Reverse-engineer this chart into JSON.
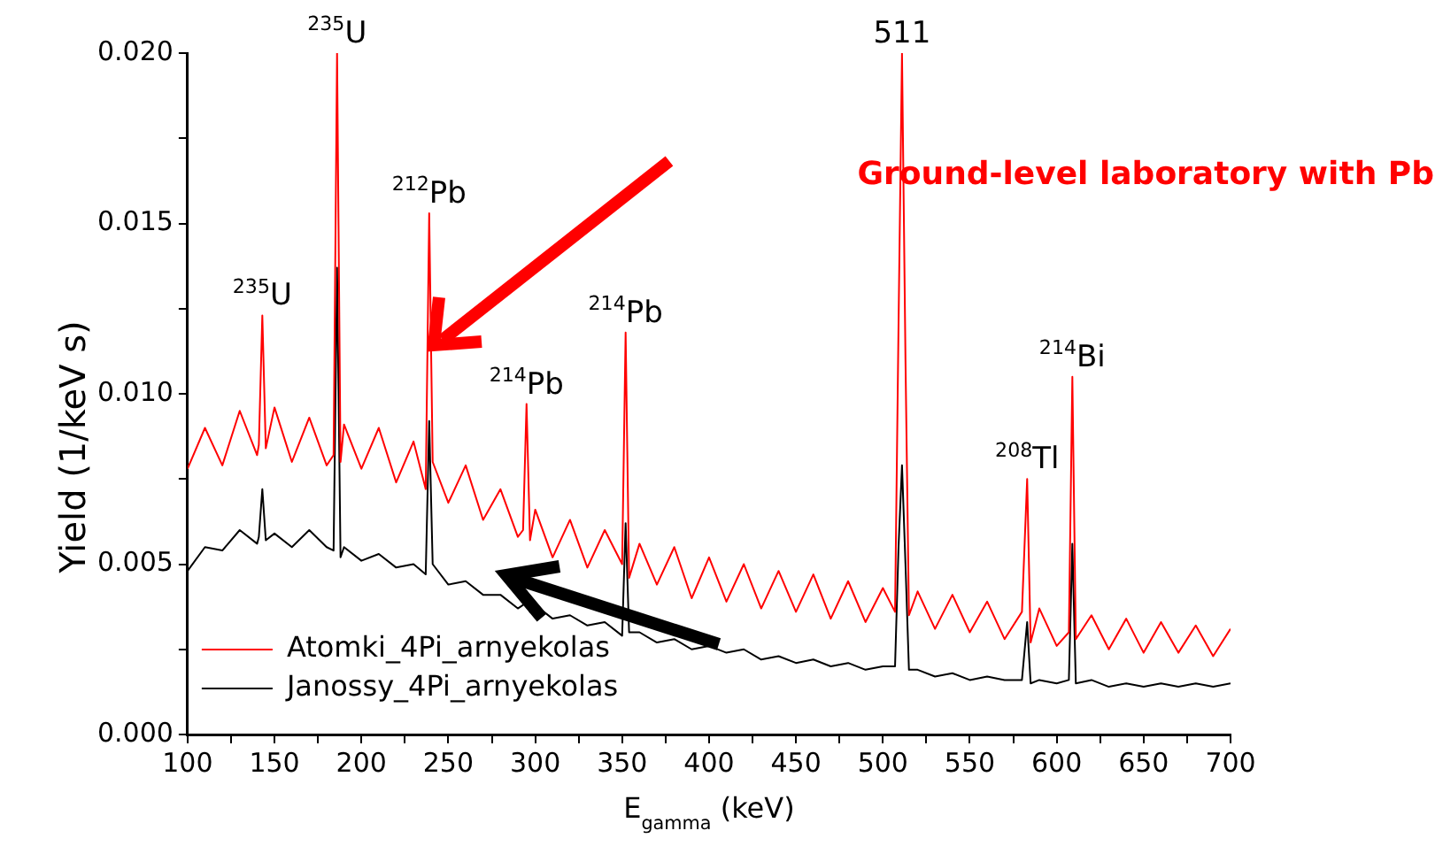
{
  "chart_data": {
    "type": "line",
    "xlabel": "E$_{gamma}$ (keV)",
    "ylabel": "Yield (1/keV s)",
    "x": [
      100,
      110,
      120,
      130,
      140,
      141,
      143,
      145,
      150,
      160,
      170,
      180,
      184,
      186,
      188,
      190,
      200,
      210,
      220,
      230,
      237,
      239,
      241,
      250,
      260,
      270,
      280,
      290,
      293,
      295,
      297,
      300,
      310,
      320,
      330,
      340,
      350,
      352,
      354,
      360,
      370,
      380,
      390,
      400,
      410,
      420,
      430,
      440,
      450,
      460,
      470,
      480,
      490,
      500,
      507,
      509,
      511,
      513,
      515,
      520,
      530,
      540,
      550,
      560,
      570,
      580,
      583,
      585,
      590,
      600,
      607,
      609,
      611,
      620,
      630,
      640,
      650,
      660,
      670,
      680,
      690,
      700
    ],
    "series": [
      {
        "name": "Atomki_4Pi_arnyekolas",
        "color": "#ff0000",
        "values": [
          0.0078,
          0.009,
          0.0079,
          0.0095,
          0.0082,
          0.0085,
          0.0123,
          0.0084,
          0.0096,
          0.008,
          0.0093,
          0.0079,
          0.0082,
          0.02,
          0.008,
          0.0091,
          0.0078,
          0.009,
          0.0074,
          0.0086,
          0.0072,
          0.0153,
          0.008,
          0.0068,
          0.0079,
          0.0063,
          0.0072,
          0.0058,
          0.006,
          0.0097,
          0.0057,
          0.0066,
          0.0052,
          0.0063,
          0.0049,
          0.006,
          0.005,
          0.0118,
          0.0046,
          0.0056,
          0.0044,
          0.0055,
          0.004,
          0.0052,
          0.0039,
          0.005,
          0.0037,
          0.0048,
          0.0036,
          0.0047,
          0.0034,
          0.0045,
          0.0033,
          0.0043,
          0.0036,
          0.012,
          0.02,
          0.011,
          0.0035,
          0.0042,
          0.0031,
          0.0041,
          0.003,
          0.0039,
          0.0028,
          0.0036,
          0.0075,
          0.0027,
          0.0037,
          0.0026,
          0.003,
          0.0105,
          0.0028,
          0.0035,
          0.0025,
          0.0034,
          0.0024,
          0.0033,
          0.0024,
          0.0032,
          0.0023,
          0.0031
        ]
      },
      {
        "name": "Janossy_4Pi_arnyekolas",
        "color": "#000000",
        "values": [
          0.0048,
          0.0055,
          0.0054,
          0.006,
          0.0056,
          0.0058,
          0.0072,
          0.0057,
          0.0059,
          0.0055,
          0.006,
          0.0055,
          0.0054,
          0.0137,
          0.0052,
          0.0055,
          0.0051,
          0.0053,
          0.0049,
          0.005,
          0.0047,
          0.0092,
          0.005,
          0.0044,
          0.0045,
          0.0041,
          0.0041,
          0.0037,
          0.0038,
          0.0042,
          0.0036,
          0.0038,
          0.0034,
          0.0035,
          0.0032,
          0.0033,
          0.0029,
          0.0062,
          0.003,
          0.003,
          0.0027,
          0.0028,
          0.0025,
          0.0026,
          0.0024,
          0.0025,
          0.0022,
          0.0023,
          0.0021,
          0.0022,
          0.002,
          0.0021,
          0.0019,
          0.002,
          0.002,
          0.0055,
          0.0079,
          0.005,
          0.0019,
          0.0019,
          0.0017,
          0.0018,
          0.0016,
          0.0017,
          0.0016,
          0.0016,
          0.0033,
          0.0015,
          0.0016,
          0.0015,
          0.0016,
          0.0056,
          0.0015,
          0.0016,
          0.0014,
          0.0015,
          0.0014,
          0.0015,
          0.0014,
          0.0015,
          0.0014,
          0.0015
        ]
      }
    ],
    "xlim": [
      100,
      700
    ],
    "xticks": [
      100,
      {
        "value": 125,
        "label": null
      },
      150,
      {
        "value": 175,
        "label": null
      },
      200,
      {
        "value": 225,
        "label": null
      },
      250,
      {
        "value": 275,
        "label": null
      },
      300,
      {
        "value": 325,
        "label": null
      },
      350,
      {
        "value": 375,
        "label": null
      },
      400,
      {
        "value": 425,
        "label": null
      },
      450,
      {
        "value": 475,
        "label": null
      },
      500,
      {
        "value": 525,
        "label": null
      },
      550,
      {
        "value": 575,
        "label": null
      },
      600,
      {
        "value": 625,
        "label": null
      },
      650,
      {
        "value": 675,
        "label": null
      },
      700
    ],
    "ylim": [
      0,
      0.02
    ],
    "yticks": [
      {
        "value": 0,
        "label": "0.000"
      },
      {
        "value": 0.0025,
        "label": null
      },
      {
        "value": 0.005,
        "label": "0.005"
      },
      {
        "value": 0.0075,
        "label": null
      },
      {
        "value": 0.01,
        "label": "0.010"
      },
      {
        "value": 0.0125,
        "label": null
      },
      {
        "value": 0.015,
        "label": "0.015"
      },
      {
        "value": 0.0175,
        "label": null
      },
      {
        "value": 0.02,
        "label": "0.020"
      }
    ],
    "grid": false,
    "legend": "bottom left",
    "marker": "none",
    "line_style": "solid",
    "annotations": [
      {
        "text": "$^{235}$U",
        "x": 143,
        "y": 0.0123
      },
      {
        "text": "$^{235}$U",
        "x": 186,
        "y": 0.02
      },
      {
        "text": "$^{212}$Pb",
        "x": 239,
        "y": 0.0153
      },
      {
        "text": "$^{214}$Pb",
        "x": 295,
        "y": 0.0097
      },
      {
        "text": "$^{214}$Pb",
        "x": 352,
        "y": 0.0118
      },
      {
        "text": "511",
        "x": 511,
        "y": 0.02
      },
      {
        "text": "$^{208}$Tl",
        "x": 583,
        "y": 0.0075
      },
      {
        "text": "$^{214}$Bi",
        "x": 609,
        "y": 0.0105
      },
      "Ground-level laboratory with Pb"
    ]
  }
}
